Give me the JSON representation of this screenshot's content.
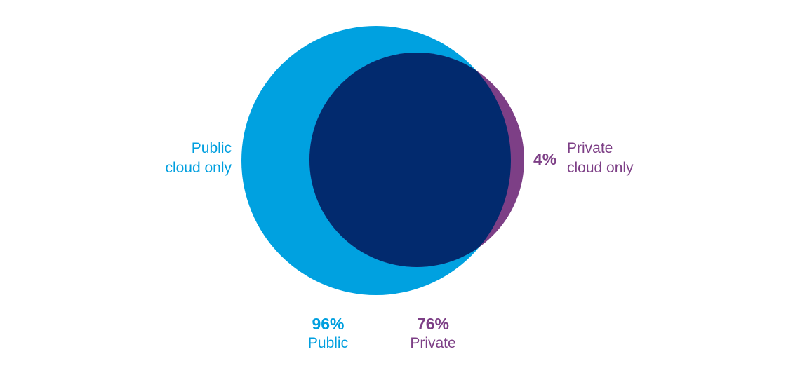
{
  "diagram": {
    "type": "venn",
    "colors": {
      "public": "#00a1e0",
      "private": "#7d3f86",
      "overlap": "#022a6e",
      "public_text": "#009fdf",
      "private_text": "#7d3f86"
    },
    "sets": [
      {
        "id": "public",
        "percent": "96%",
        "label": "Public",
        "value": 96
      },
      {
        "id": "private",
        "percent": "76%",
        "label": "Private",
        "value": 76
      }
    ],
    "regions": {
      "public_only": {
        "label_line1": "Public",
        "label_line2": "cloud only"
      },
      "private_only": {
        "percent": "4%",
        "label_line1": "Private",
        "label_line2": "cloud only",
        "value": 4
      }
    }
  }
}
